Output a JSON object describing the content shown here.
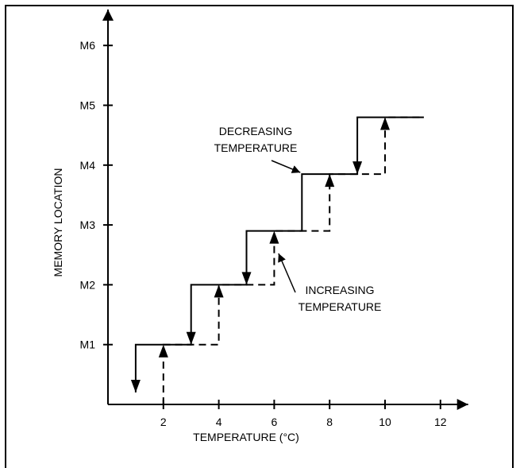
{
  "chart_data": {
    "type": "line",
    "title": "",
    "xlabel": "TEMPERATURE (°C)",
    "ylabel": "MEMORY LOCATION",
    "xlim": [
      0,
      13
    ],
    "ylim": [
      0,
      6.6
    ],
    "x_ticks": [
      2,
      4,
      6,
      8,
      10,
      12
    ],
    "y_ticks": [
      {
        "value": 1,
        "label": "M1"
      },
      {
        "value": 2,
        "label": "M2"
      },
      {
        "value": 3,
        "label": "M3"
      },
      {
        "value": 4,
        "label": "M4"
      },
      {
        "value": 5,
        "label": "M5"
      },
      {
        "value": 6,
        "label": "M6"
      }
    ],
    "grid": false,
    "series": [
      {
        "style": "solid",
        "points": [
          [
            1.0,
            0.2
          ],
          [
            1.0,
            1.0
          ],
          [
            3.0,
            1.0
          ],
          [
            3.0,
            2.0
          ],
          [
            5.0,
            2.0
          ],
          [
            5.0,
            2.9
          ],
          [
            7.0,
            2.9
          ],
          [
            7.0,
            3.85
          ],
          [
            9.0,
            3.85
          ],
          [
            9.0,
            4.8
          ],
          [
            11.4,
            4.8
          ]
        ],
        "down_arrows": [
          [
            1.0,
            0.2
          ],
          [
            3.0,
            1.0
          ],
          [
            5.0,
            2.0
          ],
          [
            9.0,
            3.85
          ]
        ]
      },
      {
        "style": "dashed",
        "points": [
          [
            2.0,
            0.0
          ],
          [
            2.0,
            1.0
          ],
          [
            4.0,
            1.0
          ],
          [
            4.0,
            2.0
          ],
          [
            6.0,
            2.0
          ],
          [
            6.0,
            2.9
          ],
          [
            8.0,
            2.9
          ],
          [
            8.0,
            3.85
          ],
          [
            10.0,
            3.85
          ],
          [
            10.0,
            4.8
          ],
          [
            11.4,
            4.8
          ]
        ],
        "up_arrows": [
          [
            2.0,
            1.0
          ],
          [
            4.0,
            2.0
          ],
          [
            6.0,
            2.9
          ],
          [
            8.0,
            3.85
          ],
          [
            10.0,
            4.8
          ]
        ]
      }
    ],
    "annotations": [
      {
        "lines": [
          "DECREASING",
          "TEMPERATURE"
        ],
        "target": [
          7.0,
          3.85
        ]
      },
      {
        "lines": [
          "INCREASING",
          "TEMPERATURE"
        ],
        "target": [
          6.1,
          2.55
        ]
      }
    ]
  }
}
